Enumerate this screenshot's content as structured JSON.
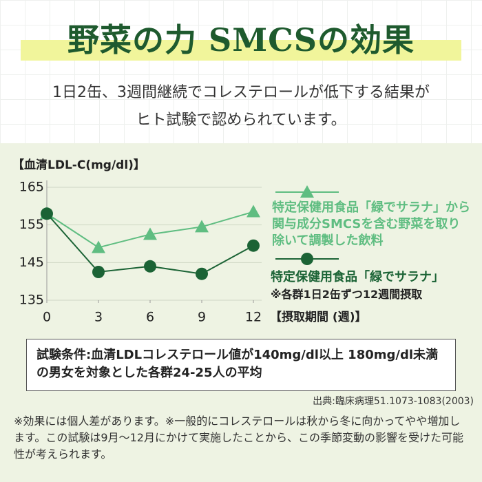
{
  "header": {
    "title": "野菜の力 SMCSの効果",
    "subtitle": [
      "1日2缶、3週間継続でコレステロールが低下する結果が",
      "ヒト試験で認められています。"
    ]
  },
  "chart_data": {
    "type": "line",
    "y_label": "【血清LDL-C(mg/dl)】",
    "x_label": "【摂取期間 (週)】",
    "x": [
      0,
      3,
      6,
      9,
      12
    ],
    "xlim": [
      0,
      12
    ],
    "xticks": [
      0,
      3,
      6,
      9,
      12
    ],
    "ylim": [
      135,
      165
    ],
    "yticks": [
      135,
      145,
      155,
      165
    ],
    "series": [
      {
        "name": "特定保健用食品「緑でサラナ」から関与成分SMCSを含む野菜を取り除いて調製した飲料",
        "color": "#5fbd81",
        "marker": "triangle",
        "values": [
          158,
          149,
          152.5,
          154.5,
          158.5
        ]
      },
      {
        "name": "特定保健用食品「緑でサラナ」",
        "color": "#1b6335",
        "marker": "circle",
        "values": [
          158,
          142.5,
          144,
          142,
          149.5
        ]
      }
    ],
    "note": "※各群1日2缶ずつ12週間摂取"
  },
  "conditions": "試験条件:血清LDLコレステロール値が140mg/dl以上 180mg/dl未満の男女を対象とした各群24-25人の平均",
  "source": "出典:臨床病理51.1073-1083(2003)",
  "footnote": "※効果には個人差があります。※一般的にコレステロールは秋から冬に向かってやや増加します。この試験は9月〜12月にかけて実施したことから、この季節変動の影響を受けた可能性が考えられます。"
}
